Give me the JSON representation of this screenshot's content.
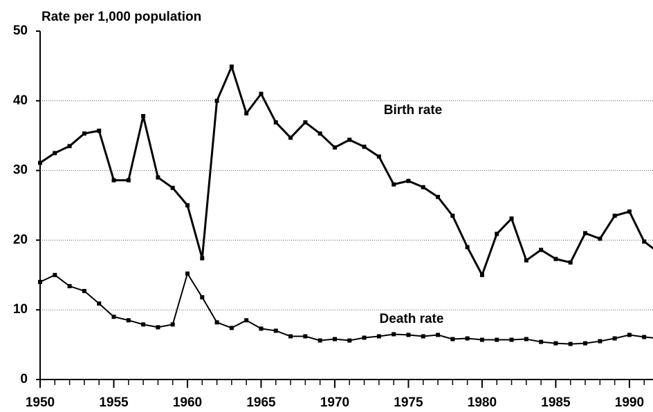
{
  "chart_data": {
    "type": "line",
    "title": "Rate per 1,000 population",
    "x": [
      1950,
      1951,
      1952,
      1953,
      1954,
      1955,
      1956,
      1957,
      1958,
      1959,
      1960,
      1961,
      1962,
      1963,
      1964,
      1965,
      1966,
      1967,
      1968,
      1969,
      1970,
      1971,
      1972,
      1973,
      1974,
      1975,
      1976,
      1977,
      1978,
      1979,
      1980,
      1981,
      1982,
      1983,
      1984,
      1985,
      1986,
      1987,
      1988,
      1989,
      1990,
      1991,
      1992
    ],
    "series": [
      {
        "name": "Birth rate",
        "color": "#000000",
        "values": [
          31.1,
          32.5,
          33.5,
          35.3,
          35.7,
          28.6,
          28.6,
          37.8,
          29.0,
          27.5,
          25.0,
          17.4,
          40.0,
          44.9,
          38.2,
          41.0,
          36.9,
          34.7,
          36.9,
          35.3,
          33.3,
          34.4,
          33.4,
          32.0,
          28.0,
          28.5,
          27.6,
          26.2,
          23.5,
          19.0,
          15.0,
          20.9,
          23.1,
          17.1,
          18.6,
          17.3,
          16.8,
          21.0,
          20.2,
          23.5,
          24.1,
          19.8,
          18.2
        ]
      },
      {
        "name": "Death rate",
        "color": "#000000",
        "values": [
          14.0,
          15.0,
          13.4,
          12.7,
          10.9,
          9.0,
          8.5,
          7.9,
          7.5,
          7.9,
          15.2,
          11.8,
          8.2,
          7.4,
          8.5,
          7.3,
          7.0,
          6.2,
          6.2,
          5.6,
          5.8,
          5.6,
          6.0,
          6.2,
          6.5,
          6.4,
          6.2,
          6.4,
          5.8,
          5.9,
          5.7,
          5.7,
          5.7,
          5.8,
          5.4,
          5.2,
          5.1,
          5.2,
          5.5,
          5.9,
          6.4,
          6.1,
          5.9
        ]
      }
    ],
    "xlim": [
      1950,
      1991.6
    ],
    "xticks": [
      1950,
      1955,
      1960,
      1965,
      1970,
      1975,
      1980,
      1985,
      1990
    ],
    "ylim": [
      0,
      50
    ],
    "yticks": [
      0,
      10,
      20,
      30,
      40,
      50
    ],
    "grid": true
  }
}
